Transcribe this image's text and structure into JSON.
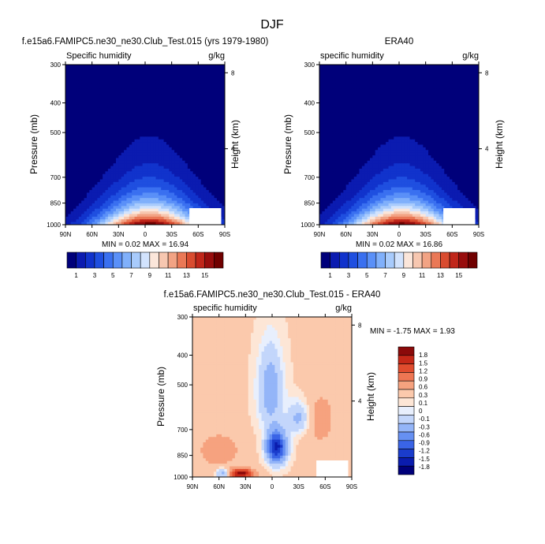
{
  "figure": {
    "title": "DJF"
  },
  "panels": [
    {
      "id": "model",
      "title": "f.e15a6.FAMIPC5.ne30_ne30.Club_Test.015 (yrs 1979-1980)",
      "left_label": "Specific humidity",
      "units": "g/kg",
      "stats": "MIN =  0.02  MAX =  16.94"
    },
    {
      "id": "obs",
      "title": "ERA40",
      "left_label": "specific humidity",
      "units": "g/kg",
      "stats": "MIN =  0.02  MAX =  16.86"
    },
    {
      "id": "diff",
      "title": "f.e15a6.FAMIPC5.ne30_ne30.Club_Test.015 - ERA40",
      "left_label": "specific humidity",
      "units": "g/kg",
      "stats": "MIN = -1.75  MAX =  1.93"
    }
  ],
  "colorbars": {
    "abs": {
      "colors": [
        "#00007a",
        "#0b1bb0",
        "#1133cc",
        "#1f4fe0",
        "#3a70f0",
        "#5a90f8",
        "#80b0fb",
        "#a8cbfc",
        "#d2e3fd",
        "#fbe6da",
        "#f7c7b0",
        "#f2a384",
        "#ea7856",
        "#d94c30",
        "#c0261a",
        "#980d0d",
        "#700000"
      ],
      "labels": [
        "1",
        "3",
        "5",
        "7",
        "9",
        "11",
        "13",
        "15"
      ]
    },
    "diff": {
      "colors": [
        "#00007a",
        "#0a1cae",
        "#1a3ccc",
        "#3a64e6",
        "#6690f2",
        "#94b5f8",
        "#c3d6fb",
        "#e8effd",
        "#fde6d6",
        "#fbc9ac",
        "#f6a27f",
        "#ee7653",
        "#e04c2e",
        "#c52818",
        "#8b0a0a"
      ],
      "labels": [
        "-1.8",
        "-1.5",
        "-1.2",
        "-0.9",
        "-0.6",
        "-0.3",
        "-0.1",
        "0",
        "0.1",
        "0.3",
        "0.6",
        "0.9",
        "1.2",
        "1.5",
        "1.8"
      ]
    }
  },
  "chart_data": [
    {
      "type": "heatmap",
      "title": "f.e15a6.FAMIPC5.ne30_ne30.Club_Test.015 (yrs 1979-1980)",
      "variable": "Specific humidity",
      "units": "g/kg",
      "xlabel": "",
      "ylabel": "Pressure (mb)",
      "y2label": "Height (km)",
      "x_ticks": [
        "90N",
        "60N",
        "30N",
        "0",
        "30S",
        "60S",
        "90S"
      ],
      "x_values": [
        90,
        60,
        30,
        0,
        -30,
        -60,
        -90
      ],
      "y_ticks": [
        300,
        400,
        500,
        700,
        850,
        1000
      ],
      "ylim": [
        1000,
        300
      ],
      "y2_ticks": [
        8,
        4
      ],
      "levels": [
        1,
        2,
        3,
        4,
        5,
        6,
        7,
        8,
        9,
        10,
        11,
        12,
        13,
        14,
        15,
        16
      ],
      "min": 0.02,
      "max": 16.94,
      "peak_latitude": -5,
      "surface_peak": 16.9
    },
    {
      "type": "heatmap",
      "title": "ERA40",
      "variable": "specific humidity",
      "units": "g/kg",
      "ylabel": "Pressure (mb)",
      "y2label": "Height (km)",
      "x_ticks": [
        "90N",
        "60N",
        "30N",
        "0",
        "30S",
        "60S",
        "90S"
      ],
      "x_values": [
        90,
        60,
        30,
        0,
        -30,
        -60,
        -90
      ],
      "y_ticks": [
        300,
        400,
        500,
        700,
        850,
        1000
      ],
      "ylim": [
        1000,
        300
      ],
      "y2_ticks": [
        8,
        4
      ],
      "levels": [
        1,
        2,
        3,
        4,
        5,
        6,
        7,
        8,
        9,
        10,
        11,
        12,
        13,
        14,
        15,
        16
      ],
      "min": 0.02,
      "max": 16.86,
      "peak_latitude": -3,
      "surface_peak": 16.8
    },
    {
      "type": "heatmap",
      "title": "f.e15a6.FAMIPC5.ne30_ne30.Club_Test.015 - ERA40",
      "variable": "specific humidity",
      "units": "g/kg",
      "ylabel": "Pressure (mb)",
      "y2label": "Height (km)",
      "x_ticks": [
        "90N",
        "60N",
        "30N",
        "0",
        "30S",
        "60S",
        "90S"
      ],
      "x_values": [
        90,
        60,
        30,
        0,
        -30,
        -60,
        -90
      ],
      "y_ticks": [
        300,
        400,
        500,
        700,
        850,
        1000
      ],
      "ylim": [
        1000,
        300
      ],
      "y2_ticks": [
        8,
        4
      ],
      "levels": [
        -1.8,
        -1.5,
        -1.2,
        -0.9,
        -0.6,
        -0.3,
        -0.1,
        0,
        0.1,
        0.3,
        0.6,
        0.9,
        1.2,
        1.5,
        1.8
      ],
      "min": -1.75,
      "max": 1.93
    }
  ]
}
